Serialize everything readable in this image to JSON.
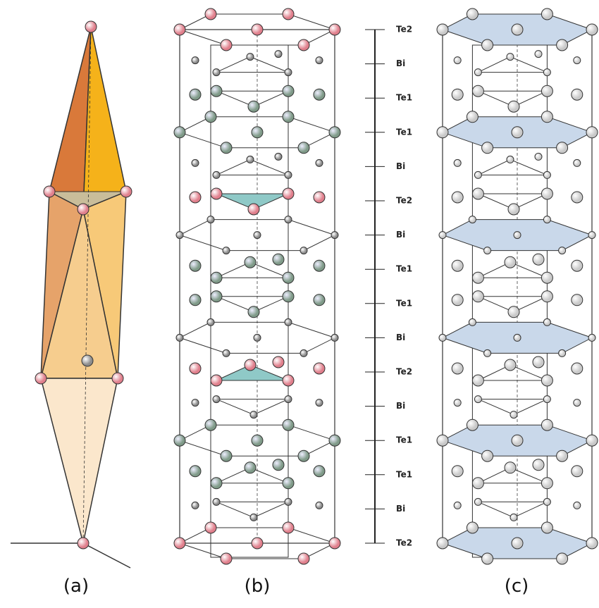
{
  "panels": [
    {
      "label": "(a)"
    },
    {
      "label": "(b)"
    },
    {
      "label": "(c)"
    }
  ],
  "layers": [
    "Te2",
    "Bi",
    "Te1",
    "Te1",
    "Bi",
    "Te2",
    "Bi",
    "Te1",
    "Te1",
    "Bi",
    "Te2",
    "Bi",
    "Te1",
    "Te1",
    "Bi",
    "Te2"
  ]
}
